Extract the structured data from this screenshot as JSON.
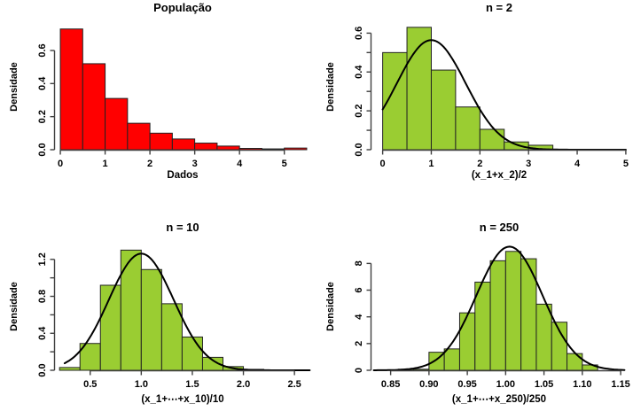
{
  "figure": {
    "background": "#ffffff",
    "axis_color": "#404040",
    "text_color": "#000000",
    "bar_border_color": "#222222",
    "curve_color": "#000000",
    "population_color": "#ff0000",
    "sample_mean_color": "#9acd32"
  },
  "chart_data": [
    {
      "type": "bar",
      "title": "População",
      "xlabel": "Dados",
      "ylabel": "Densidade",
      "bar_color": "#ff0000",
      "bin_start": 0,
      "bin_width": 0.5,
      "values": [
        0.73,
        0.52,
        0.31,
        0.16,
        0.1,
        0.065,
        0.04,
        0.022,
        0.008,
        0.005,
        0.01
      ],
      "xticks": [
        0,
        1,
        2,
        3,
        4,
        5
      ],
      "xtick_labels": [
        "0",
        "1",
        "2",
        "3",
        "4",
        "5"
      ],
      "yticks": [
        0,
        0.2,
        0.4,
        0.6
      ],
      "ytick_labels": [
        "0.0",
        "0.2",
        "0.4",
        "0.6"
      ],
      "yticks_minor": [],
      "xlim": [
        -0.12,
        5.58
      ],
      "ylim": [
        0,
        0.766
      ],
      "grid": false,
      "legend": null,
      "curve": null
    },
    {
      "type": "bar",
      "title": "n = 2",
      "xlabel": "(x_1+x_2)/2",
      "ylabel": "Densidade",
      "bar_color": "#9acd32",
      "bin_start": 0,
      "bin_width": 0.5,
      "values": [
        0.5,
        0.63,
        0.41,
        0.22,
        0.105,
        0.04,
        0.023
      ],
      "xticks": [
        0,
        1,
        2,
        3,
        4,
        5
      ],
      "xtick_labels": [
        "0",
        "1",
        "2",
        "3",
        "4",
        "5"
      ],
      "yticks": [
        0,
        0.2,
        0.4,
        0.6
      ],
      "ytick_labels": [
        "0.0",
        "0.2",
        "0.4",
        "0.6"
      ],
      "yticks_minor": [
        0.1,
        0.3,
        0.5
      ],
      "xlim": [
        -0.23,
        5.02
      ],
      "ylim": [
        0,
        0.652
      ],
      "grid": false,
      "legend": null,
      "curve": {
        "type": "normal",
        "mean": 1.0,
        "sd": 0.707,
        "x_range": [
          0.0,
          5.0
        ],
        "peak": 0.564
      }
    },
    {
      "type": "bar",
      "title": "n = 10",
      "xlabel": "(x_1+⋯+x_10)/10",
      "ylabel": "Densidade",
      "bar_color": "#9acd32",
      "bin_start": 0.2,
      "bin_width": 0.2,
      "values": [
        0.03,
        0.29,
        0.92,
        1.3,
        1.09,
        0.72,
        0.36,
        0.14,
        0.04,
        0.01
      ],
      "xticks": [
        0.5,
        1.0,
        1.5,
        2.0,
        2.5
      ],
      "xtick_labels": [
        "0.5",
        "1.0",
        "1.5",
        "2.0",
        "2.5"
      ],
      "yticks": [
        0,
        0.4,
        0.8,
        1.2
      ],
      "ytick_labels": [
        "0.0",
        "0.4",
        "0.8",
        "1.2"
      ],
      "yticks_minor": [
        0.2,
        0.6,
        1.0
      ],
      "xlim": [
        0.155,
        2.655
      ],
      "ylim": [
        0,
        1.38
      ],
      "grid": false,
      "legend": null,
      "curve": {
        "type": "normal",
        "mean": 1.0,
        "sd": 0.3162,
        "x_range": [
          0.25,
          2.65
        ],
        "peak": 1.262
      }
    },
    {
      "type": "bar",
      "title": "n = 250",
      "xlabel": "(x_1+⋯+x_250)/250",
      "ylabel": "Densidade",
      "bar_color": "#9acd32",
      "bin_start": 0.86,
      "bin_width": 0.02,
      "values": [
        0.08,
        0.08,
        1.35,
        1.6,
        4.3,
        6.6,
        8.2,
        8.9,
        8.35,
        4.95,
        3.6,
        1.25,
        0.4
      ],
      "xticks": [
        0.85,
        0.9,
        0.95,
        1.0,
        1.05,
        1.1,
        1.15
      ],
      "xtick_labels": [
        "0.85",
        "0.90",
        "0.95",
        "1.00",
        "1.05",
        "1.10",
        "1.15"
      ],
      "yticks": [
        0,
        2,
        4,
        6,
        8
      ],
      "ytick_labels": [
        "0",
        "2",
        "4",
        "6",
        "8"
      ],
      "yticks_minor": [],
      "xlim": [
        0.825,
        1.158
      ],
      "ylim": [
        0,
        9.55
      ],
      "grid": false,
      "legend": null,
      "curve": {
        "type": "normal",
        "mean": 1.005,
        "sd": 0.0431,
        "x_range": [
          0.828,
          1.155
        ],
        "peak": 9.26
      }
    }
  ]
}
